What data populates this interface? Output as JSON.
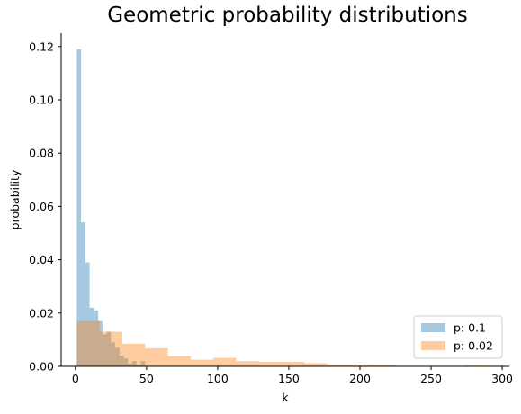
{
  "chart_data": {
    "type": "bar",
    "title": "Geometric probability distributions",
    "xlabel": "k",
    "ylabel": "probability",
    "xlim": [
      -10,
      305
    ],
    "ylim": [
      0,
      0.125
    ],
    "xticks": [
      0,
      50,
      100,
      150,
      200,
      250,
      300
    ],
    "xtick_labels": [
      "0",
      "50",
      "100",
      "150",
      "200",
      "250",
      "300"
    ],
    "yticks": [
      0,
      0.02,
      0.04,
      0.06,
      0.08,
      0.1,
      0.12
    ],
    "ytick_labels": [
      "0.00",
      "0.02",
      "0.04",
      "0.06",
      "0.08",
      "0.10",
      "0.12"
    ],
    "legend_position": "bottom-right",
    "series": [
      {
        "name": "p: 0.1",
        "color": "#1f77b4",
        "alpha": 0.4,
        "bins": [
          {
            "x0": 1,
            "x1": 4,
            "y": 0.119
          },
          {
            "x0": 4,
            "x1": 7,
            "y": 0.054
          },
          {
            "x0": 7,
            "x1": 10,
            "y": 0.039
          },
          {
            "x0": 10,
            "x1": 13,
            "y": 0.022
          },
          {
            "x0": 13,
            "x1": 16,
            "y": 0.021
          },
          {
            "x0": 16,
            "x1": 19,
            "y": 0.017
          },
          {
            "x0": 19,
            "x1": 22,
            "y": 0.012
          },
          {
            "x0": 22,
            "x1": 25,
            "y": 0.013
          },
          {
            "x0": 25,
            "x1": 28,
            "y": 0.009
          },
          {
            "x0": 28,
            "x1": 31,
            "y": 0.007
          },
          {
            "x0": 31,
            "x1": 34,
            "y": 0.004
          },
          {
            "x0": 34,
            "x1": 37,
            "y": 0.003
          },
          {
            "x0": 37,
            "x1": 40,
            "y": 0.001
          },
          {
            "x0": 40,
            "x1": 43,
            "y": 0.002
          },
          {
            "x0": 43,
            "x1": 46,
            "y": 0.0005
          },
          {
            "x0": 46,
            "x1": 49,
            "y": 0.002
          }
        ]
      },
      {
        "name": "p: 0.02",
        "color": "#ff7f0e",
        "alpha": 0.4,
        "bins": [
          {
            "x0": 1,
            "x1": 17,
            "y": 0.017
          },
          {
            "x0": 17,
            "x1": 33,
            "y": 0.013
          },
          {
            "x0": 33,
            "x1": 49,
            "y": 0.0085
          },
          {
            "x0": 49,
            "x1": 65,
            "y": 0.0068
          },
          {
            "x0": 65,
            "x1": 81,
            "y": 0.0038
          },
          {
            "x0": 81,
            "x1": 97,
            "y": 0.0025
          },
          {
            "x0": 97,
            "x1": 113,
            "y": 0.0032
          },
          {
            "x0": 113,
            "x1": 129,
            "y": 0.002
          },
          {
            "x0": 129,
            "x1": 145,
            "y": 0.0017
          },
          {
            "x0": 145,
            "x1": 161,
            "y": 0.0017
          },
          {
            "x0": 161,
            "x1": 177,
            "y": 0.0012
          },
          {
            "x0": 177,
            "x1": 193,
            "y": 0.0006
          },
          {
            "x0": 193,
            "x1": 209,
            "y": 0.0006
          },
          {
            "x0": 209,
            "x1": 225,
            "y": 0.0005
          },
          {
            "x0": 225,
            "x1": 241,
            "y": 0.0002
          },
          {
            "x0": 241,
            "x1": 257,
            "y": 0.0001
          },
          {
            "x0": 257,
            "x1": 273,
            "y": 0.0001
          },
          {
            "x0": 273,
            "x1": 289,
            "y": 0.0003
          },
          {
            "x0": 289,
            "x1": 305,
            "y": 0.0002
          }
        ]
      }
    ]
  }
}
